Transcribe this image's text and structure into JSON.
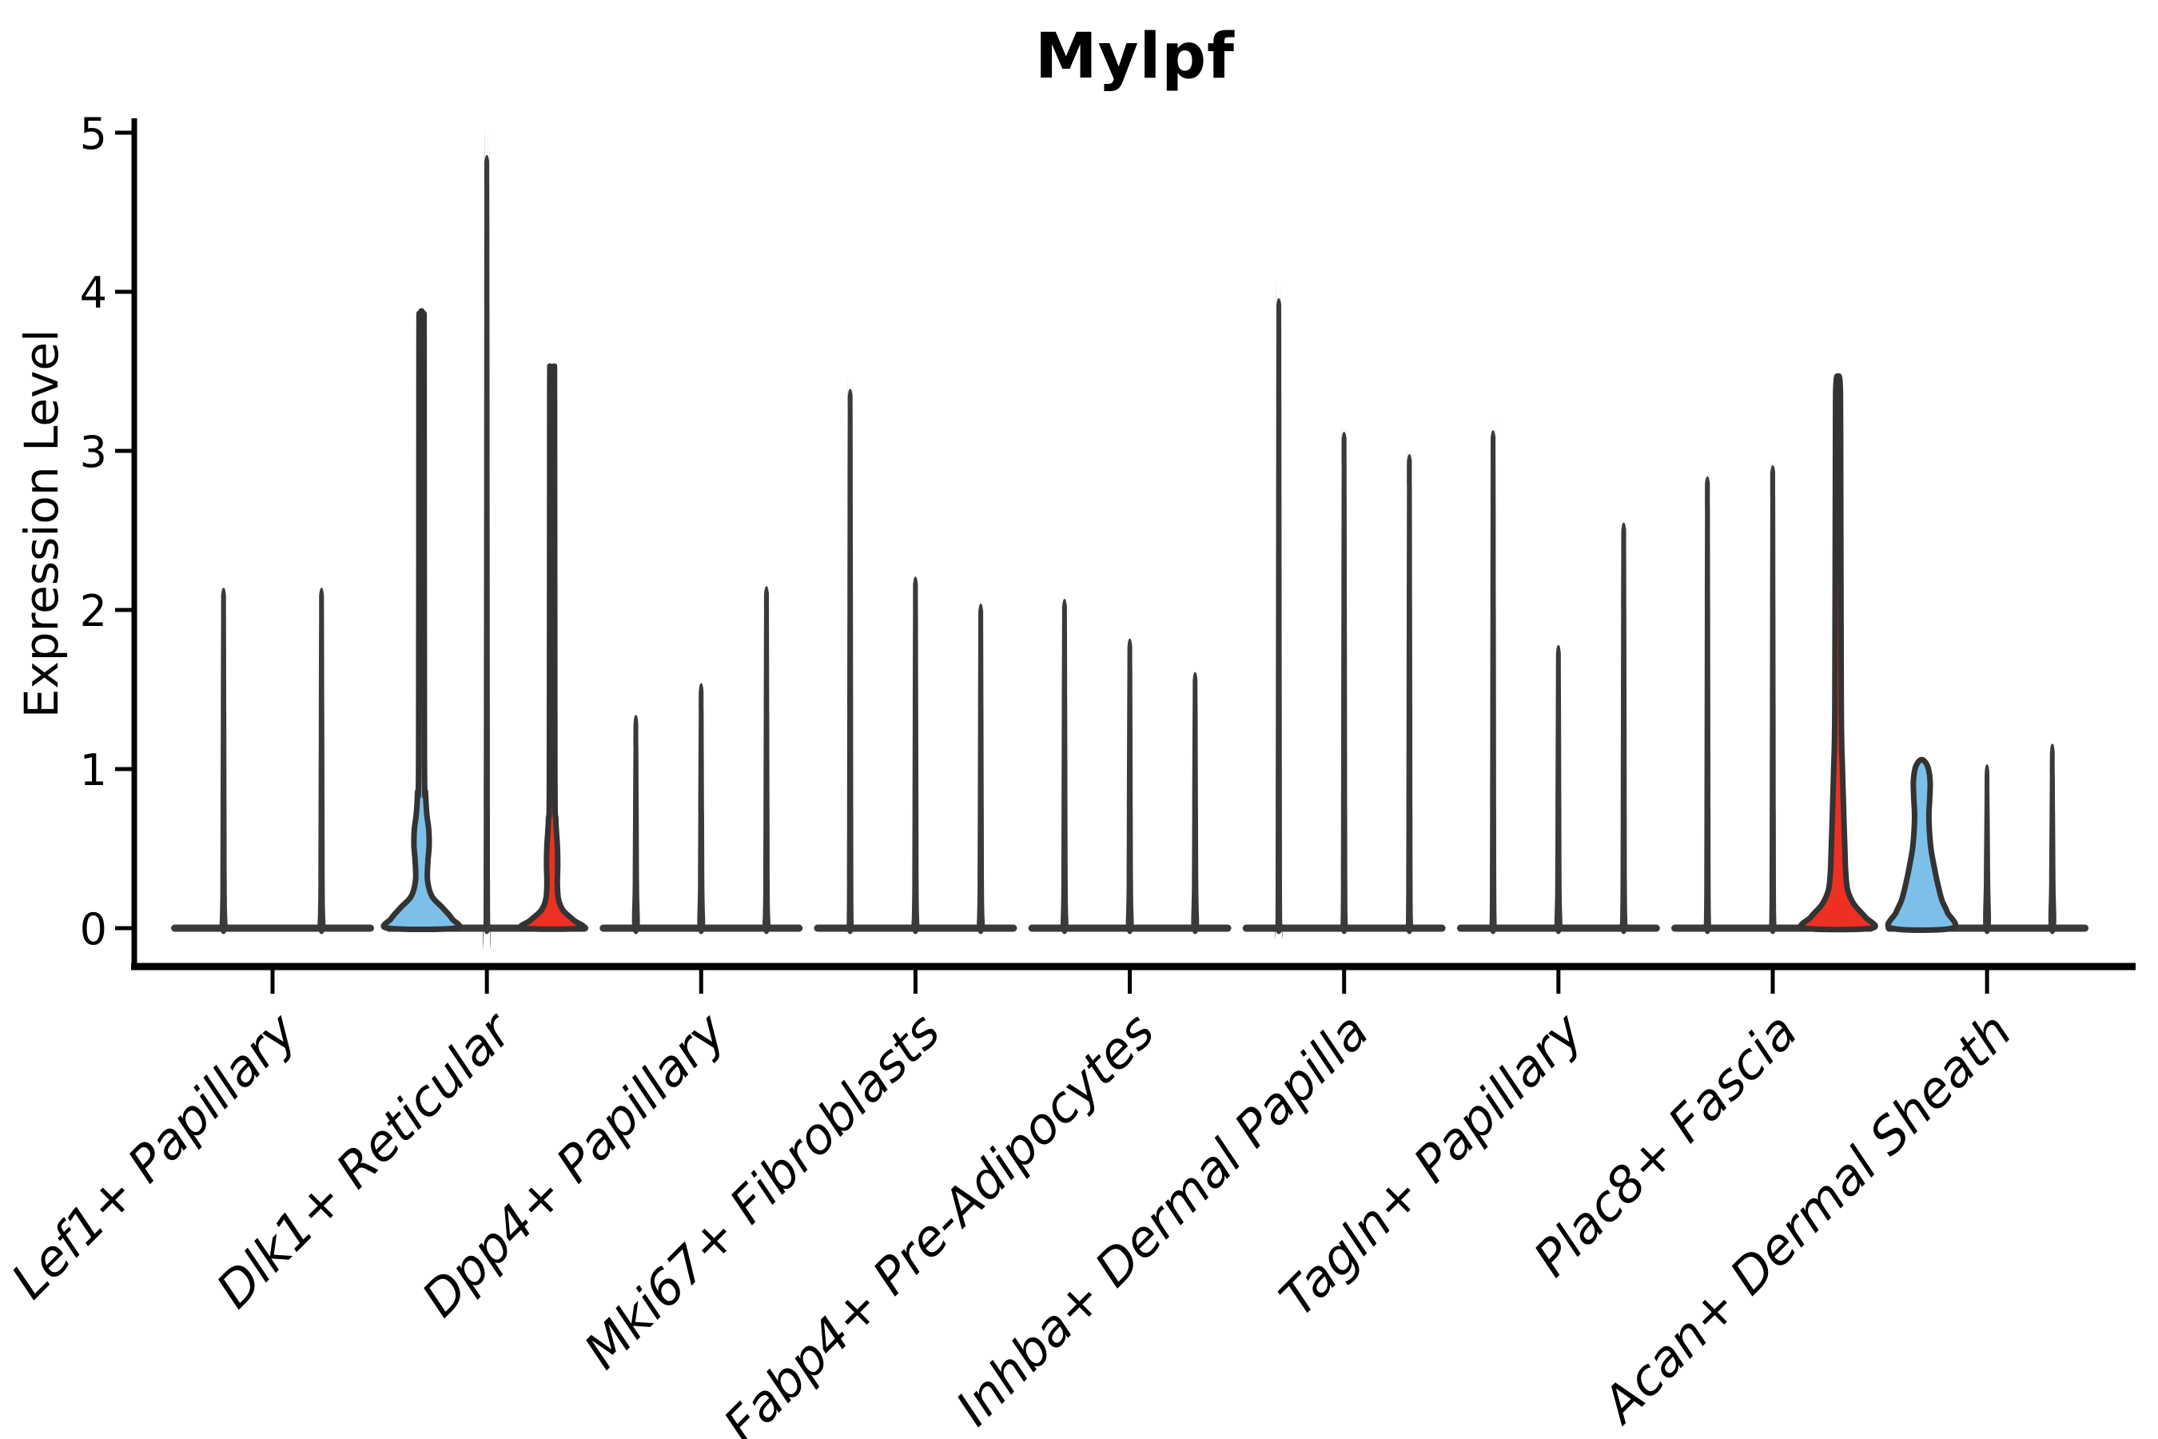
{
  "title": "Mylpf",
  "y_axis": {
    "label": "Expression Level"
  },
  "chart_data": {
    "type": "violin",
    "title": "Mylpf",
    "xlabel": "",
    "ylabel": "Expression Level",
    "ylim": [
      0,
      5
    ],
    "yticks": [
      0,
      1,
      2,
      3,
      4,
      5
    ],
    "legend": "none",
    "grid": false,
    "categories": [
      "Lef1+ Papillary",
      "Dlk1+ Reticular",
      "Dpp4+ Papillary",
      "Mki67+ Fibroblasts",
      "Fabp4+ Pre-Adipocytes",
      "Inhba+ Dermal Papilla",
      "Tagln+ Papillary",
      "Plac8+ Fascia",
      "Acan+ Dermal Sheath"
    ],
    "colors": {
      "outline": "#333333",
      "baseline": "#3a3a3a",
      "spike": "#3a3a3a",
      "blue_fill": "#7cc0ea",
      "red_fill": "#ee3023",
      "axis": "#000000"
    },
    "groups": [
      {
        "label": "Lef1+ Papillary",
        "violins": [
          {
            "max": 2.14,
            "fill": "none",
            "shape": "spike"
          },
          {
            "max": 2.14,
            "fill": "none",
            "shape": "spike"
          }
        ]
      },
      {
        "label": "Dlk1+ Reticular",
        "violins": [
          {
            "max": 3.88,
            "fill": "blue",
            "shape": "bulge",
            "profile": [
              [
                0,
                42
              ],
              [
                0.06,
                38
              ],
              [
                0.13,
                26
              ],
              [
                0.2,
                13
              ],
              [
                0.3,
                7.5
              ],
              [
                0.42,
                8
              ],
              [
                0.52,
                9.5
              ],
              [
                0.62,
                9
              ],
              [
                0.72,
                6.5
              ],
              [
                0.85,
                5
              ],
              [
                1.1,
                3.6
              ],
              [
                3.6,
                3.2
              ],
              [
                3.82,
                2.6
              ],
              [
                3.88,
                0
              ]
            ]
          },
          {
            "max": 4.86,
            "fill": "none",
            "shape": "spike"
          },
          {
            "max": 3.53,
            "fill": "red",
            "shape": "bulge",
            "profile": [
              [
                0,
                36
              ],
              [
                0.05,
                27
              ],
              [
                0.11,
                14
              ],
              [
                0.18,
                8
              ],
              [
                0.28,
                6.5
              ],
              [
                0.4,
                7
              ],
              [
                0.52,
                6.5
              ],
              [
                0.68,
                4.6
              ],
              [
                1.0,
                3.4
              ],
              [
                3.3,
                3.0
              ],
              [
                3.48,
                2.4
              ],
              [
                3.53,
                0
              ]
            ]
          }
        ]
      },
      {
        "label": "Dpp4+ Papillary",
        "violins": [
          {
            "max": 1.34,
            "fill": "none",
            "shape": "spike"
          },
          {
            "max": 1.54,
            "fill": "none",
            "shape": "spike"
          },
          {
            "max": 2.15,
            "fill": "none",
            "shape": "spike"
          }
        ]
      },
      {
        "label": "Mki67+ Fibroblasts",
        "violins": [
          {
            "max": 3.39,
            "fill": "none",
            "shape": "spike"
          },
          {
            "max": 2.21,
            "fill": "none",
            "shape": "spike"
          },
          {
            "max": 2.04,
            "fill": "none",
            "shape": "spike"
          }
        ]
      },
      {
        "label": "Fabp4+ Pre-Adipocytes",
        "violins": [
          {
            "max": 2.07,
            "fill": "none",
            "shape": "spike"
          },
          {
            "max": 1.82,
            "fill": "none",
            "shape": "spike"
          },
          {
            "max": 1.61,
            "fill": "none",
            "shape": "spike"
          }
        ]
      },
      {
        "label": "Inhba+ Dermal Papilla",
        "violins": [
          {
            "max": 3.96,
            "fill": "none",
            "shape": "spike"
          },
          {
            "max": 3.12,
            "fill": "none",
            "shape": "spike"
          },
          {
            "max": 2.98,
            "fill": "none",
            "shape": "spike"
          }
        ]
      },
      {
        "label": "Tagln+ Papillary",
        "violins": [
          {
            "max": 3.13,
            "fill": "none",
            "shape": "spike"
          },
          {
            "max": 1.78,
            "fill": "none",
            "shape": "spike"
          },
          {
            "max": 2.55,
            "fill": "none",
            "shape": "spike"
          }
        ]
      },
      {
        "label": "Plac8+ Fascia",
        "violins": [
          {
            "max": 2.84,
            "fill": "none",
            "shape": "spike"
          },
          {
            "max": 2.91,
            "fill": "none",
            "shape": "spike"
          },
          {
            "max": 3.47,
            "fill": "red",
            "shape": "bulge",
            "profile": [
              [
                0,
                42
              ],
              [
                0.07,
                34
              ],
              [
                0.15,
                20
              ],
              [
                0.24,
                12
              ],
              [
                0.36,
                9.5
              ],
              [
                0.5,
                8.5
              ],
              [
                0.65,
                7.5
              ],
              [
                0.82,
                6.5
              ],
              [
                1.0,
                5.5
              ],
              [
                1.4,
                4.0
              ],
              [
                3.1,
                3.2
              ],
              [
                3.42,
                2.6
              ],
              [
                3.47,
                0
              ]
            ]
          }
        ]
      },
      {
        "label": "Acan+ Dermal Sheath",
        "violins": [
          {
            "max": 1.06,
            "fill": "blue",
            "shape": "bulge",
            "profile": [
              [
                0,
                38
              ],
              [
                0.1,
                32
              ],
              [
                0.18,
                25
              ],
              [
                0.3,
                19
              ],
              [
                0.4,
                15
              ],
              [
                0.5,
                11.5
              ],
              [
                0.62,
                9.5
              ],
              [
                0.72,
                9
              ],
              [
                0.82,
                10
              ],
              [
                0.92,
                10.5
              ],
              [
                1.0,
                8.5
              ],
              [
                1.04,
                5
              ],
              [
                1.06,
                0
              ]
            ]
          },
          {
            "max": 1.03,
            "fill": "none",
            "shape": "spike"
          },
          {
            "max": 1.16,
            "fill": "none",
            "shape": "spike"
          }
        ]
      }
    ]
  }
}
